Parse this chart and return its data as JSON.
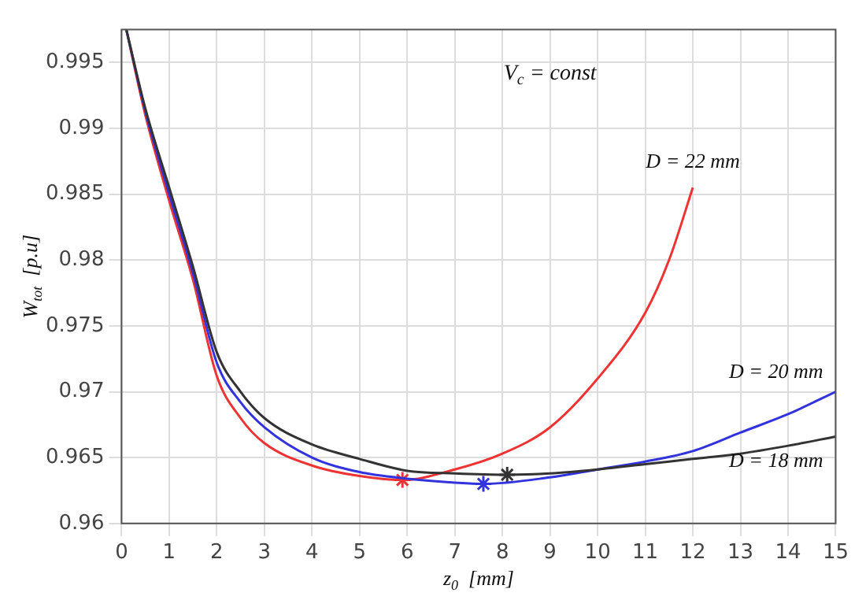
{
  "chart_data": {
    "type": "line",
    "xlabel": "z$_{0}$  [mm]",
    "ylabel": "W$_{tot}$  [p.u]",
    "annotations": [
      "V$_{c}$ = const"
    ],
    "xlim": [
      0,
      15
    ],
    "ylim": [
      0.96,
      0.9975
    ],
    "xticks": [
      0,
      1,
      2,
      3,
      4,
      5,
      6,
      7,
      8,
      9,
      10,
      11,
      12,
      13,
      14,
      15
    ],
    "yticks": [
      0.96,
      0.965,
      0.97,
      0.975,
      0.98,
      0.985,
      0.99,
      0.995
    ],
    "grid": true,
    "legend": false,
    "marker": "none",
    "line_style": "solid",
    "series": [
      {
        "name": "D = 18 mm",
        "color": "#333333",
        "x": [
          0.1,
          0.5,
          1,
          1.5,
          2,
          2.5,
          3,
          4,
          5,
          6,
          7,
          8.1,
          9,
          10,
          11,
          12,
          13,
          14,
          15
        ],
        "values": [
          0.9975,
          0.9915,
          0.9855,
          0.9795,
          0.973,
          0.97,
          0.968,
          0.966,
          0.9649,
          0.964,
          0.9638,
          0.9637,
          0.9638,
          0.9641,
          0.9645,
          0.9649,
          0.9653,
          0.9659,
          0.9666
        ]
      },
      {
        "name": "D = 20 mm",
        "color": "#3333dd",
        "x": [
          0.1,
          0.5,
          1,
          1.5,
          2,
          2.5,
          3,
          4,
          5,
          6,
          7,
          7.6,
          9,
          10,
          11,
          12,
          13,
          14,
          15
        ],
        "values": [
          0.9975,
          0.9913,
          0.985,
          0.979,
          0.9722,
          0.9692,
          0.9673,
          0.965,
          0.9639,
          0.9634,
          0.9631,
          0.963,
          0.9635,
          0.9641,
          0.9647,
          0.9655,
          0.9669,
          0.9683,
          0.97
        ]
      },
      {
        "name": "D = 22 mm",
        "color": "#ee3333",
        "x": [
          0.1,
          0.5,
          1,
          1.5,
          2,
          2.5,
          3,
          4,
          5,
          5.9,
          7,
          8,
          9,
          10,
          11,
          11.5,
          12
        ],
        "values": [
          0.9975,
          0.991,
          0.9845,
          0.9785,
          0.9712,
          0.968,
          0.9661,
          0.9644,
          0.9636,
          0.9633,
          0.9641,
          0.9653,
          0.9673,
          0.971,
          0.976,
          0.98,
          0.9855
        ]
      },
      {
        "type": "scatter",
        "marker": "cross",
        "color": "#333333",
        "x": [
          8.1
        ],
        "values": [
          0.9637
        ]
      },
      {
        "type": "scatter",
        "marker": "cross",
        "color": "#3333dd",
        "x": [
          7.6
        ],
        "values": [
          0.963
        ]
      },
      {
        "type": "scatter",
        "marker": "cross",
        "color": "#ee3333",
        "x": [
          5.9
        ],
        "values": [
          0.9633
        ]
      }
    ]
  }
}
